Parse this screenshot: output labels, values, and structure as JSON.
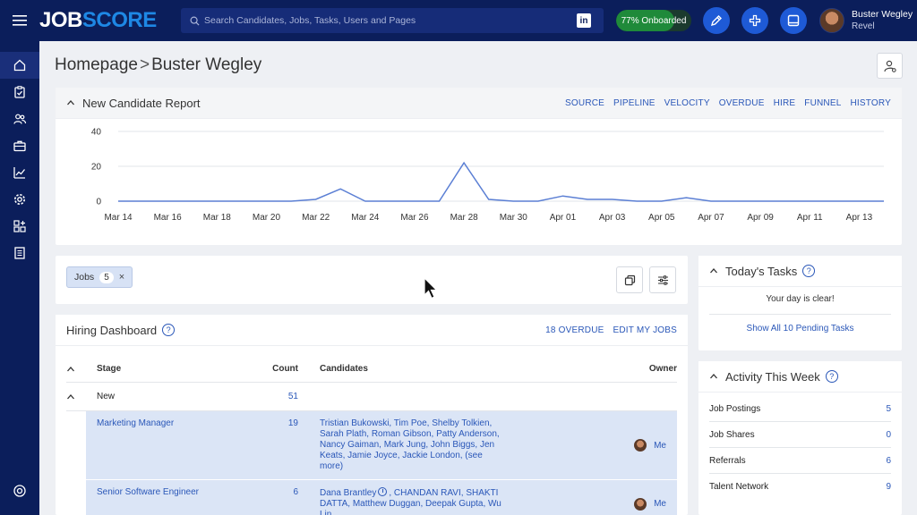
{
  "topbar": {
    "logo_job": "JOB",
    "logo_score": "SCORE",
    "search_placeholder": "Search Candidates, Jobs, Tasks, Users and Pages",
    "linkedin": "in",
    "onboarded_label": "77% Onboarded",
    "onboarded_fraction": 0.77,
    "user_name": "Buster Wegley",
    "user_org": "Revel"
  },
  "breadcrumb": {
    "home": "Homepage",
    "separator": ">",
    "current": "Buster Wegley"
  },
  "report": {
    "title": "New Candidate Report",
    "links": [
      "SOURCE",
      "PIPELINE",
      "VELOCITY",
      "OVERDUE",
      "HIRE",
      "FUNNEL",
      "HISTORY"
    ]
  },
  "chart_data": {
    "type": "line",
    "title": "",
    "xlabel": "",
    "ylabel": "",
    "ylim": [
      0,
      40
    ],
    "yticks": [
      0,
      20,
      40
    ],
    "grid": true,
    "x_tick_labels": [
      "Mar 14",
      "Mar 16",
      "Mar 18",
      "Mar 20",
      "Mar 22",
      "Mar 24",
      "Mar 26",
      "Mar 28",
      "Mar 30",
      "Apr 01",
      "Apr 03",
      "Apr 05",
      "Apr 07",
      "Apr 09",
      "Apr 11",
      "Apr 13"
    ],
    "x_start": "2024-03-14",
    "x_end": "2024-04-14",
    "series": [
      {
        "color": "#5b7fd4",
        "points": [
          {
            "x": "2024-03-14",
            "y": 0
          },
          {
            "x": "2024-03-15",
            "y": 0
          },
          {
            "x": "2024-03-16",
            "y": 0
          },
          {
            "x": "2024-03-17",
            "y": 0
          },
          {
            "x": "2024-03-18",
            "y": 0
          },
          {
            "x": "2024-03-19",
            "y": 0
          },
          {
            "x": "2024-03-20",
            "y": 0
          },
          {
            "x": "2024-03-21",
            "y": 0
          },
          {
            "x": "2024-03-22",
            "y": 1
          },
          {
            "x": "2024-03-23",
            "y": 7
          },
          {
            "x": "2024-03-24",
            "y": 0
          },
          {
            "x": "2024-03-25",
            "y": 0
          },
          {
            "x": "2024-03-26",
            "y": 0
          },
          {
            "x": "2024-03-27",
            "y": 0
          },
          {
            "x": "2024-03-28",
            "y": 22
          },
          {
            "x": "2024-03-29",
            "y": 1
          },
          {
            "x": "2024-03-30",
            "y": 0
          },
          {
            "x": "2024-03-31",
            "y": 0
          },
          {
            "x": "2024-04-01",
            "y": 3
          },
          {
            "x": "2024-04-02",
            "y": 1
          },
          {
            "x": "2024-04-03",
            "y": 1
          },
          {
            "x": "2024-04-04",
            "y": 0
          },
          {
            "x": "2024-04-05",
            "y": 0
          },
          {
            "x": "2024-04-06",
            "y": 2
          },
          {
            "x": "2024-04-07",
            "y": 0
          },
          {
            "x": "2024-04-08",
            "y": 0
          },
          {
            "x": "2024-04-09",
            "y": 0
          },
          {
            "x": "2024-04-10",
            "y": 0
          },
          {
            "x": "2024-04-11",
            "y": 0
          },
          {
            "x": "2024-04-12",
            "y": 0
          },
          {
            "x": "2024-04-13",
            "y": 0
          },
          {
            "x": "2024-04-14",
            "y": 0
          }
        ]
      }
    ]
  },
  "jobs_filter": {
    "label": "Jobs",
    "count": "5",
    "remove": "×"
  },
  "hiring": {
    "title": "Hiring Dashboard",
    "help": "?",
    "links": [
      "18 OVERDUE",
      "EDIT MY JOBS"
    ],
    "headers": {
      "stage": "Stage",
      "count": "Count",
      "candidates": "Candidates",
      "owner": "Owner"
    },
    "group": {
      "name": "New",
      "count": "51"
    },
    "jobs": [
      {
        "title": "Marketing Manager",
        "count": "19",
        "candidates": "Tristian Bukowski, Tim Poe, Shelby Tolkien, Sarah Plath, Roman Gibson, Patty Anderson, Nancy Gaiman, Mark Jung, John Biggs, Jen Keats, Jamie Joyce, Jackie London, (see more)",
        "owner": "Me"
      },
      {
        "title": "Senior Software Engineer",
        "count": "6",
        "candidates_a": "Dana Brantley",
        "candidates_b": ", CHANDAN RAVI, SHAKTI DATTA, Matthew Duggan, Deepak Gupta, Wu Lin",
        "owner": "Me"
      }
    ]
  },
  "tasks": {
    "title": "Today's Tasks",
    "help": "?",
    "empty": "Your day is clear!",
    "show_all": "Show All 10 Pending Tasks"
  },
  "activity": {
    "title": "Activity This Week",
    "help": "?",
    "rows": [
      {
        "label": "Job Postings",
        "value": "5"
      },
      {
        "label": "Job Shares",
        "value": "0"
      },
      {
        "label": "Referrals",
        "value": "6"
      },
      {
        "label": "Talent Network",
        "value": "9"
      }
    ]
  }
}
